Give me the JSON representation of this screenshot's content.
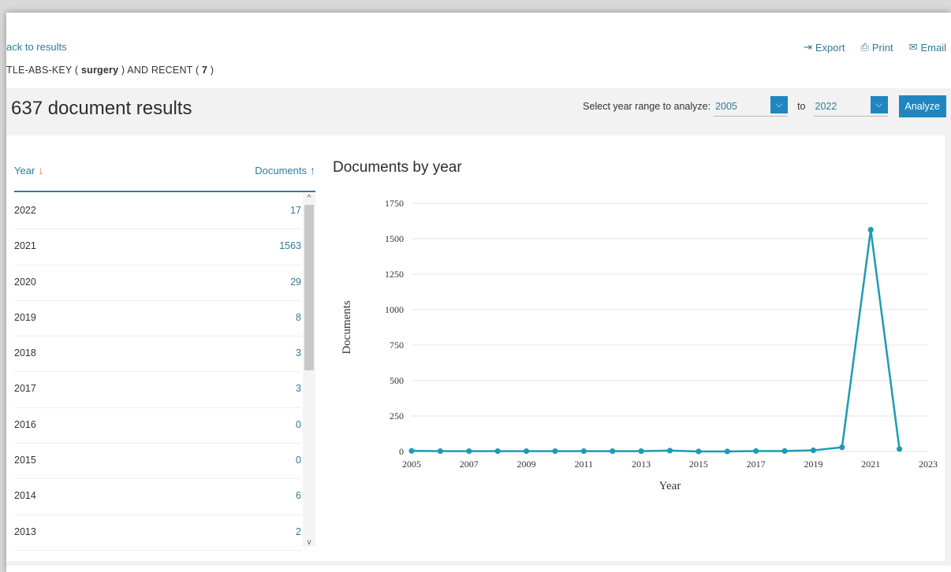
{
  "header": {
    "back_link": "ack to results",
    "query": {
      "prefix": "TLE-ABS-KEY ( ",
      "term": "surgery",
      "middle": " )  AND  RECENT ( ",
      "recent": "7",
      "suffix": " )"
    },
    "actions": [
      {
        "label": "Export",
        "icon": "export-icon"
      },
      {
        "label": "Print",
        "icon": "print-icon"
      },
      {
        "label": "Email",
        "icon": "email-icon"
      }
    ]
  },
  "results": {
    "count_text": "637 document results",
    "range_label": "Select year range to analyze:",
    "from_year": "2005",
    "to_label": "to",
    "to_year": "2022",
    "analyze_label": "Analyze"
  },
  "table": {
    "col_year": "Year",
    "col_documents": "Documents",
    "rows": [
      {
        "year": "2022",
        "docs": "17"
      },
      {
        "year": "2021",
        "docs": "1563"
      },
      {
        "year": "2020",
        "docs": "29"
      },
      {
        "year": "2019",
        "docs": "8"
      },
      {
        "year": "2018",
        "docs": "3"
      },
      {
        "year": "2017",
        "docs": "3"
      },
      {
        "year": "2016",
        "docs": "0"
      },
      {
        "year": "2015",
        "docs": "0"
      },
      {
        "year": "2014",
        "docs": "6"
      },
      {
        "year": "2013",
        "docs": "2"
      }
    ]
  },
  "colors": {
    "accent": "#2e7d99",
    "line": "#1d9bb5",
    "button": "#1f86c0",
    "sort_arrow": "#e5822e"
  },
  "chart_data": {
    "type": "line",
    "title": "Documents by year",
    "xlabel": "Year",
    "ylabel": "Documents",
    "x": [
      2005,
      2006,
      2007,
      2008,
      2009,
      2010,
      2011,
      2012,
      2013,
      2014,
      2015,
      2016,
      2017,
      2018,
      2019,
      2020,
      2021,
      2022
    ],
    "values": [
      4,
      2,
      2,
      2,
      2,
      2,
      2,
      2,
      2,
      6,
      0,
      0,
      3,
      3,
      8,
      29,
      1563,
      17
    ],
    "xlim": [
      2005,
      2023
    ],
    "ylim": [
      0,
      1750
    ],
    "x_ticks": [
      2005,
      2007,
      2009,
      2011,
      2013,
      2015,
      2017,
      2019,
      2021,
      2023
    ],
    "y_ticks": [
      0,
      250,
      500,
      750,
      1000,
      1250,
      1500,
      1750
    ],
    "grid": true
  }
}
